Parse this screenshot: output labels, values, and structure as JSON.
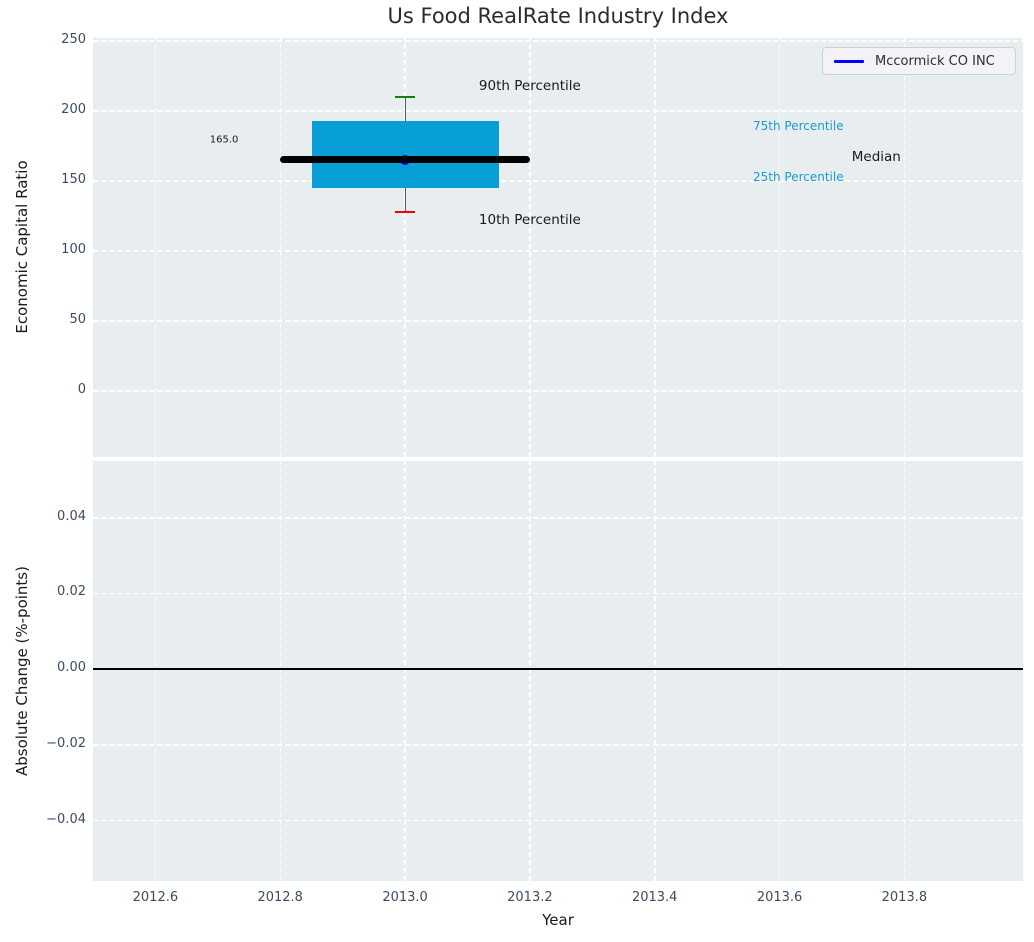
{
  "figure": {
    "title": "Us Food RealRate Industry Index",
    "plot_background": "#e8edf0",
    "grid_color": "#ffffff"
  },
  "legend": {
    "label": "Mccormick CO INC",
    "line_color": "#0000ff"
  },
  "axes": {
    "top_ylabel": "Economic Capital Ratio",
    "bottom_ylabel": "Absolute Change (%-points)",
    "xlabel": "Year"
  },
  "chart_data": [
    {
      "type": "box",
      "title": "Us Food RealRate Industry Index",
      "ylabel": "Economic Capital Ratio",
      "series_name": "Mccormick CO INC",
      "xlim": [
        2012.5,
        2013.99
      ],
      "ylim": [
        -47,
        252
      ],
      "grid": true,
      "yticks": {
        "values": [
          250,
          200,
          150,
          100,
          50,
          0
        ],
        "labels": [
          "250",
          "200",
          "150",
          "100",
          "50",
          "0"
        ]
      },
      "xticks": {
        "values": [
          2012.6,
          2012.8,
          2013.0,
          2013.2,
          2013.4,
          2013.6,
          2013.8
        ],
        "labels_visible": false
      },
      "box": {
        "x": 2013.0,
        "p10": 128,
        "p25": 145,
        "median": 165,
        "p75": 193,
        "p90": 210,
        "box_halfwidth": 0.15,
        "median_halfwidth": 0.2,
        "cap_halfwidth": 0.016,
        "box_color": "#089ed6",
        "whisker_color": "#5a5a5a",
        "cap90_color": "#0f820f",
        "cap10_color": "#f40000",
        "median_color": "#000000",
        "marker_color": "#0000ff"
      },
      "annotations": [
        {
          "text": "165.0",
          "x": 2012.71,
          "y": 179,
          "color": "#1a1a1a",
          "size": 10
        },
        {
          "text": "90th Percentile",
          "x": 2013.2,
          "y": 218,
          "color": "#1a1a1a",
          "size": 13.5
        },
        {
          "text": "10th Percentile",
          "x": 2013.2,
          "y": 122,
          "color": "#1a1a1a",
          "size": 13.5
        },
        {
          "text": "75th Percentile",
          "x": 2013.63,
          "y": 189,
          "color": "#1a9cce",
          "size": 12
        },
        {
          "text": "25th Percentile",
          "x": 2013.63,
          "y": 153,
          "color": "#1a9cce",
          "size": 12
        },
        {
          "text": "Median",
          "x": 2013.755,
          "y": 167,
          "color": "#1a1a1a",
          "size": 13.5
        }
      ]
    },
    {
      "type": "line",
      "ylabel": "Absolute Change (%-points)",
      "xlabel": "Year",
      "xlim": [
        2012.5,
        2013.99
      ],
      "ylim": [
        -0.056,
        0.055
      ],
      "grid": true,
      "yticks": {
        "values": [
          0.04,
          0.02,
          0.0,
          -0.02,
          -0.04
        ],
        "labels": [
          "0.04",
          "0.02",
          "0.00",
          "−0.02",
          "−0.04"
        ]
      },
      "xticks": {
        "values": [
          2012.6,
          2012.8,
          2013.0,
          2013.2,
          2013.4,
          2013.6,
          2013.8
        ],
        "labels": [
          "2012.6",
          "2012.8",
          "2013.0",
          "2013.2",
          "2013.4",
          "2013.6",
          "2013.8"
        ],
        "labels_visible": true
      },
      "zero_line": {
        "y": 0.0,
        "color": "#000000"
      }
    }
  ]
}
